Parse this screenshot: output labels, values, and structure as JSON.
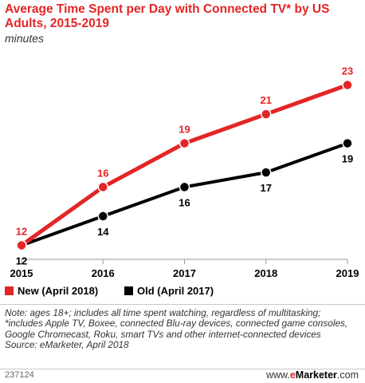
{
  "title": "Average Time Spent per Day with Connected TV* by US Adults, 2015-2019",
  "subtitle": "minutes",
  "chart_data": {
    "type": "line",
    "title": "Average Time Spent per Day with Connected TV* by US Adults, 2015-2019",
    "subtitle": "minutes",
    "x": [
      "2015",
      "2016",
      "2017",
      "2018",
      "2019"
    ],
    "ylim": [
      10,
      25
    ],
    "grid": false,
    "legend_position": "bottom-left",
    "series": [
      {
        "name": "New (April 2018)",
        "color": "#e32526",
        "values": [
          12,
          16,
          19,
          21,
          23
        ]
      },
      {
        "name": "Old (April 2017)",
        "color": "#000000",
        "values": [
          12,
          14,
          16,
          17,
          19
        ]
      }
    ]
  },
  "note": "Note: ages 18+; includes all time spent watching, regardless of multitasking; *includes Apple TV, Boxee, connected Blu-ray devices, connected game consoles, Google Chromecast, Roku, smart TVs and other internet-connected devices",
  "source": "Source: eMarketer, April 2018",
  "footer": {
    "chart_id": "237124",
    "brand_prefix": "www.",
    "brand_e": "e",
    "brand_rest": "Marketer",
    "brand_suffix": ".com"
  }
}
